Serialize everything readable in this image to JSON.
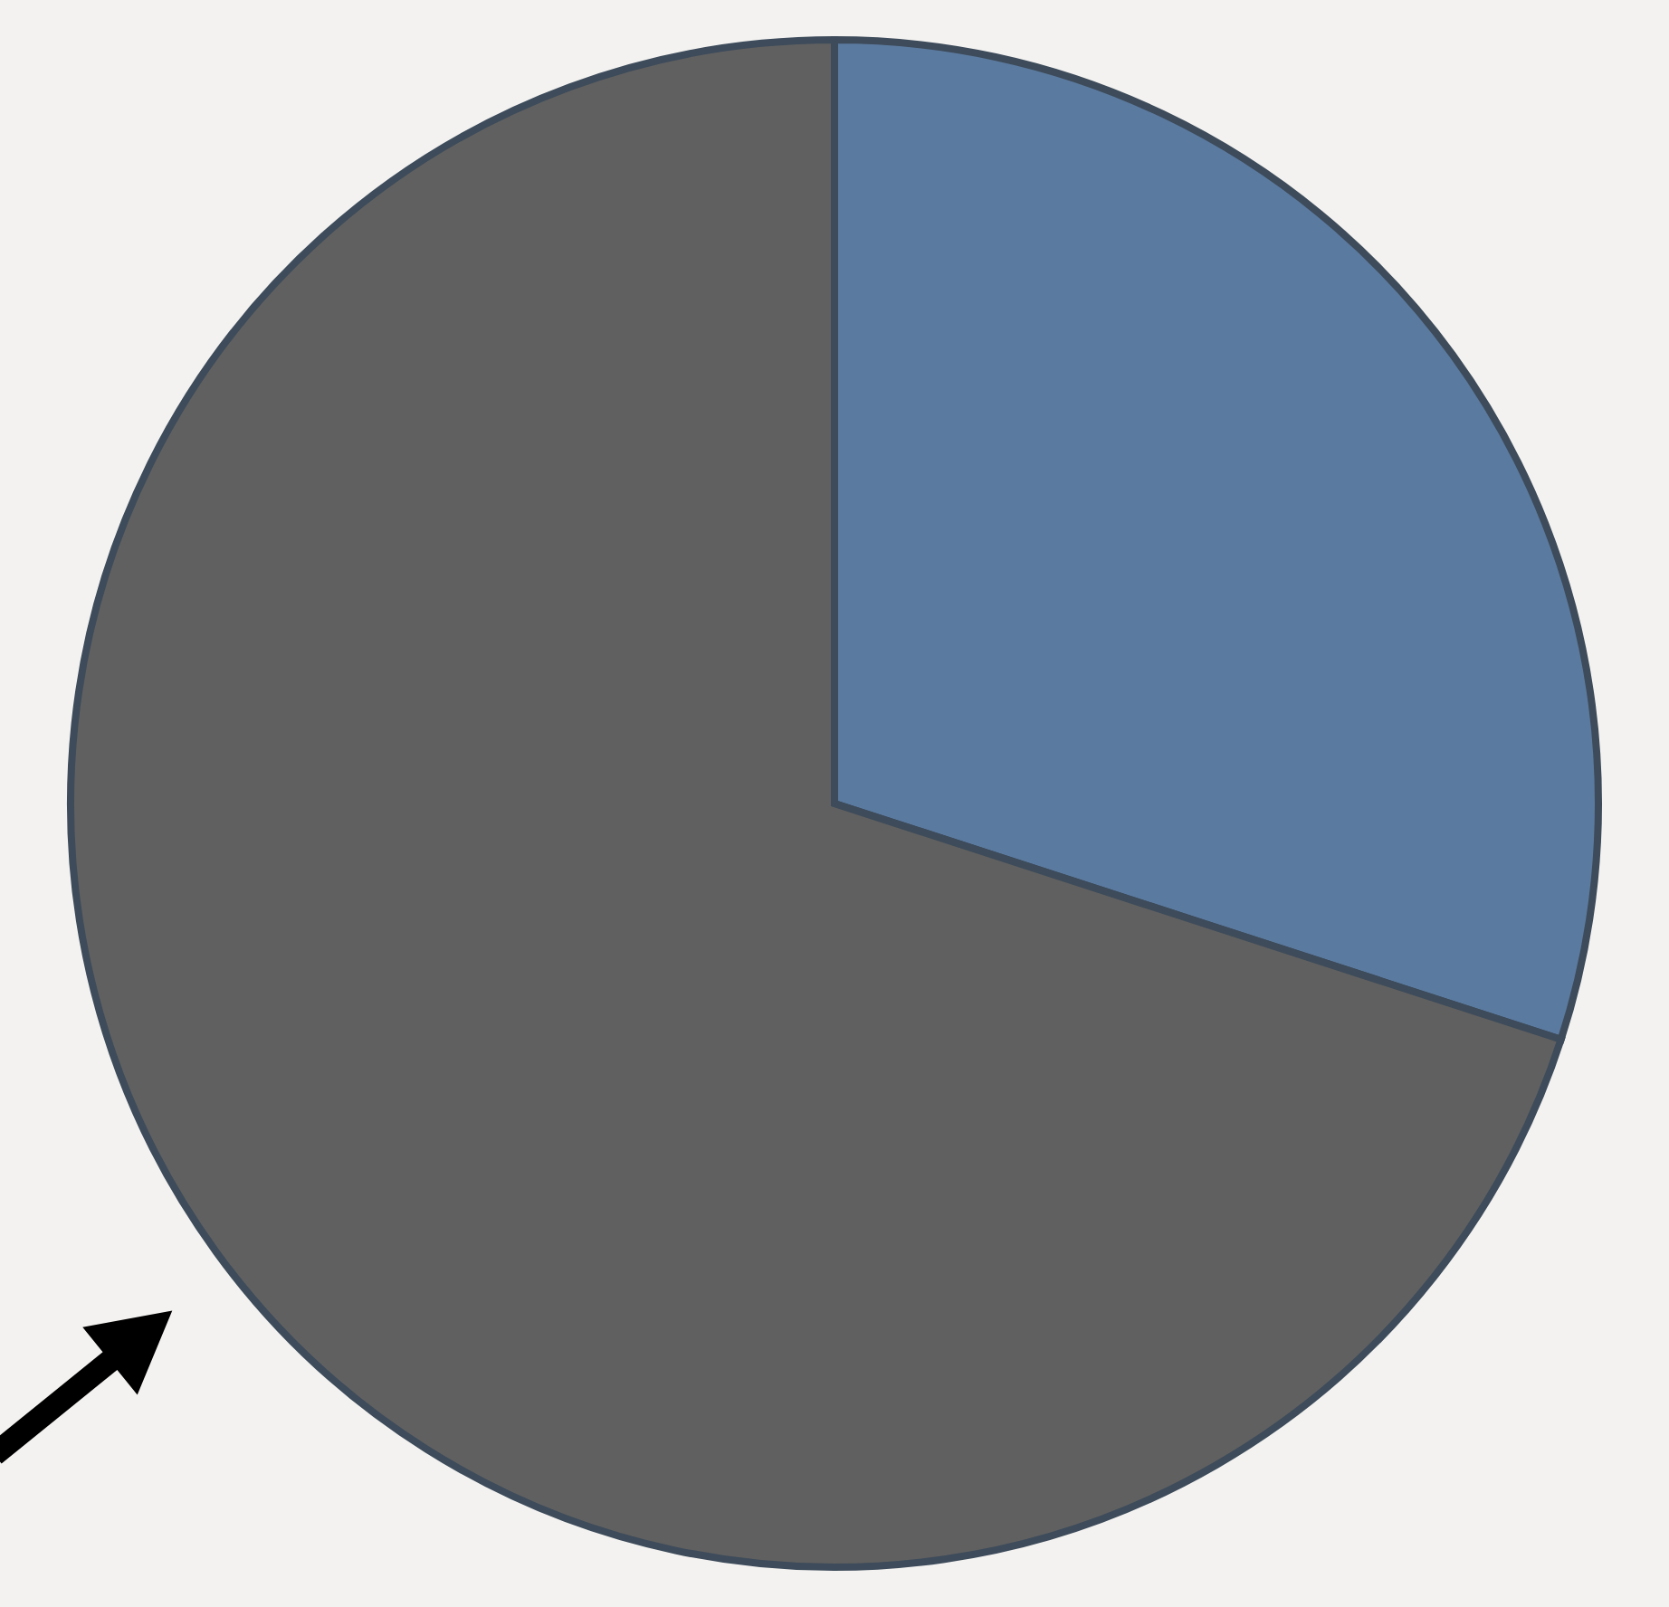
{
  "chart_data": {
    "type": "pie",
    "categories": [
      null,
      null
    ],
    "values": [
      30,
      70
    ],
    "colors": [
      "#5b7a9f",
      "#606060"
    ]
  }
}
